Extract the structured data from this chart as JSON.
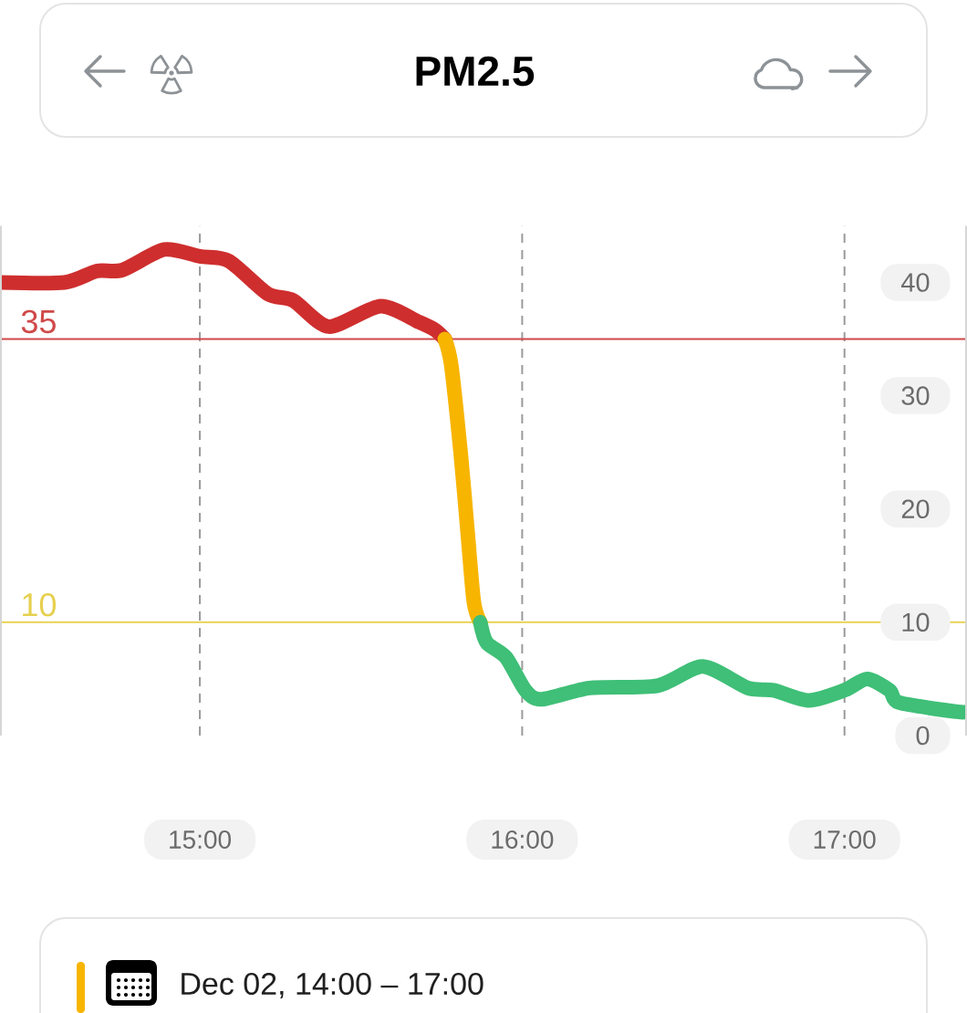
{
  "chart_data": {
    "type": "line",
    "title": "PM2.5",
    "xlim": [
      14.38,
      17.38
    ],
    "xticks": [
      {
        "value": 15,
        "label": "15:00"
      },
      {
        "value": 16,
        "label": "16:00"
      },
      {
        "value": 17,
        "label": "17:00"
      }
    ],
    "ylim": [
      0,
      45
    ],
    "yticks": [
      0,
      10,
      20,
      30,
      40
    ],
    "grid": "x",
    "ref_lines": [
      {
        "axis": "y",
        "value": 35,
        "label": "35",
        "color": "#d04848"
      },
      {
        "axis": "y",
        "value": 10,
        "label": "10",
        "color": "#e6d04e"
      }
    ],
    "series": [
      {
        "color": "#cf2e2e",
        "x": [
          14.38,
          14.58,
          14.68,
          14.76,
          14.89,
          15.0,
          15.09,
          15.21,
          15.29,
          15.4,
          15.56,
          15.68,
          15.73,
          15.76
        ],
        "values": [
          40.0,
          40.0,
          41.0,
          41.1,
          42.9,
          42.3,
          41.9,
          39.0,
          38.4,
          36.1,
          37.9,
          36.5,
          35.8,
          35.0
        ]
      },
      {
        "color": "#f7b500",
        "x": [
          15.76,
          15.78,
          15.81,
          15.83,
          15.85,
          15.87
        ],
        "values": [
          35.0,
          32.7,
          24.7,
          18.2,
          11.8,
          10.0
        ]
      },
      {
        "color": "#3fbf77",
        "x": [
          15.87,
          15.89,
          15.95,
          16.01,
          16.06,
          16.21,
          16.42,
          16.56,
          16.7,
          16.78,
          16.89,
          17.0,
          17.07,
          17.14,
          17.17,
          17.35,
          17.38
        ],
        "values": [
          10.0,
          8.2,
          6.9,
          4.0,
          3.2,
          4.2,
          4.4,
          6.1,
          4.2,
          4.0,
          3.1,
          4.0,
          5.0,
          4.0,
          2.9,
          2.1,
          2.1
        ]
      }
    ],
    "annotations": [
      "Dec 02, 14:00 – 17:00"
    ]
  }
}
